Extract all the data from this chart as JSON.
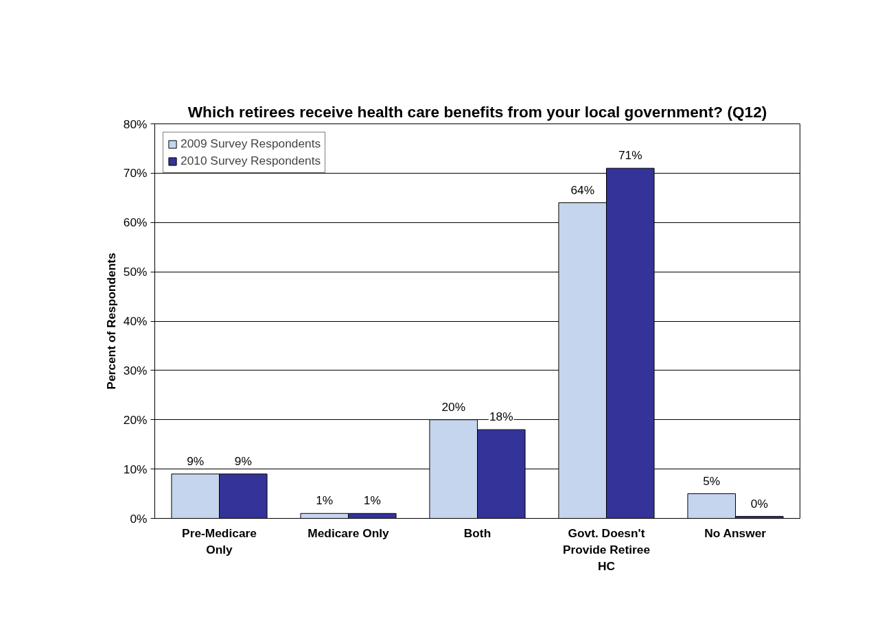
{
  "chart_data": {
    "type": "bar",
    "title": "Which retirees receive health care benefits from your local government? (Q12)",
    "ylabel": "Percent of Respondents",
    "categories": [
      "Pre-Medicare Only",
      "Medicare Only",
      "Both",
      "Govt. Doesn't Provide Retiree HC",
      "No Answer"
    ],
    "series": [
      {
        "name": "2009 Survey Respondents",
        "color": "#c5d5ee",
        "values": [
          9,
          1,
          20,
          64,
          5
        ],
        "value_labels": [
          "9%",
          "1%",
          "20%",
          "64%",
          "5%"
        ]
      },
      {
        "name": "2010 Survey Respondents",
        "color": "#333399",
        "values": [
          9,
          1,
          18,
          71,
          0.4
        ],
        "value_labels": [
          "9%",
          "1%",
          "18%",
          "71%",
          "0%"
        ]
      }
    ],
    "ylim": [
      0,
      80
    ],
    "yticks": [
      {
        "value": 0,
        "label": "0%"
      },
      {
        "value": 10,
        "label": "10%"
      },
      {
        "value": 20,
        "label": "20%"
      },
      {
        "value": 30,
        "label": "30%"
      },
      {
        "value": 40,
        "label": "40%"
      },
      {
        "value": 50,
        "label": "50%"
      },
      {
        "value": 60,
        "label": "60%"
      },
      {
        "value": 70,
        "label": "70%"
      },
      {
        "value": 80,
        "label": "80%"
      }
    ],
    "grid": "y",
    "legend": "top left"
  }
}
